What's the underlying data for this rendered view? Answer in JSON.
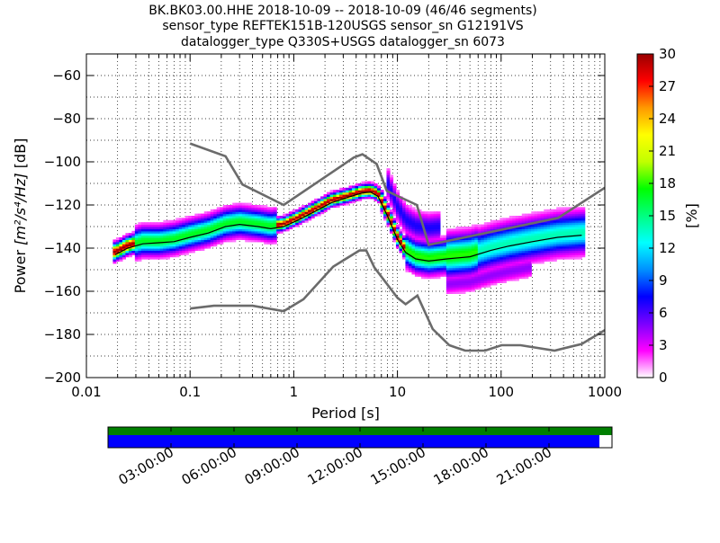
{
  "title_lines": [
    "BK.BK03.00.HHE   2018-10-09 -- 2018-10-09  (46/46 segments)",
    "sensor_type REFTEK151B-120USGS sensor_sn G12191VS",
    "datalogger_type Q330S+USGS datalogger_sn 6073"
  ],
  "chart_data": {
    "type": "heatmap",
    "xlabel": "Period [s]",
    "ylabel_prefix": "Power ",
    "ylabel_unit": "[m²/s⁴/Hz]",
    "ylabel_suffix": " [dB]",
    "xscale": "log",
    "xlim": [
      0.01,
      1000
    ],
    "ylim": [
      -200,
      -50
    ],
    "x_ticks": [
      0.01,
      0.1,
      1,
      10,
      100,
      1000
    ],
    "x_tick_labels": [
      "0.01",
      "0.1",
      "1",
      "10",
      "100",
      "1000"
    ],
    "y_ticks": [
      -200,
      -180,
      -160,
      -140,
      -120,
      -100,
      -80,
      -60
    ],
    "y_tick_labels": [
      "−200",
      "−180",
      "−160",
      "−140",
      "−120",
      "−100",
      "−80",
      "−60"
    ],
    "grid": "dotted",
    "colorbar": {
      "label": "[%]",
      "range": [
        0,
        30
      ],
      "ticks": [
        0,
        3,
        6,
        9,
        12,
        15,
        18,
        21,
        24,
        27,
        30
      ],
      "colormap": [
        "#ffffff",
        "#ff00ff",
        "#7a00ff",
        "#0000ff",
        "#0090ff",
        "#00ffff",
        "#00ff80",
        "#00ff00",
        "#c0ff00",
        "#ffff00",
        "#ff9900",
        "#ff0000",
        "#990000"
      ]
    },
    "nhnm": [
      [
        0.1,
        -91.5
      ],
      [
        0.22,
        -97.4
      ],
      [
        0.32,
        -110.5
      ],
      [
        0.8,
        -120
      ],
      [
        3.8,
        -98
      ],
      [
        4.6,
        -96.5
      ],
      [
        6.3,
        -101
      ],
      [
        7.9,
        -113.5
      ],
      [
        15.4,
        -120
      ],
      [
        20,
        -138.5
      ],
      [
        354.8,
        -126
      ],
      [
        1000,
        -112
      ]
    ],
    "nlnm": [
      [
        0.1,
        -168
      ],
      [
        0.17,
        -166.7
      ],
      [
        0.4,
        -166.7
      ],
      [
        0.8,
        -169.2
      ],
      [
        1.24,
        -163.7
      ],
      [
        2.4,
        -148.6
      ],
      [
        4.3,
        -141.1
      ],
      [
        5,
        -141.1
      ],
      [
        6,
        -149
      ],
      [
        10,
        -163
      ],
      [
        12,
        -166
      ],
      [
        15.6,
        -162
      ],
      [
        21.9,
        -177.5
      ],
      [
        31.6,
        -185
      ],
      [
        45,
        -187.5
      ],
      [
        70,
        -187.5
      ],
      [
        101,
        -185
      ],
      [
        154,
        -185
      ],
      [
        328,
        -187.5
      ],
      [
        600,
        -184.4
      ],
      [
        1000,
        -178
      ]
    ],
    "mode_curve": [
      [
        0.019,
        -142
      ],
      [
        0.025,
        -139
      ],
      [
        0.035,
        -137
      ],
      [
        0.05,
        -137
      ],
      [
        0.07,
        -136
      ],
      [
        0.1,
        -134
      ],
      [
        0.15,
        -132
      ],
      [
        0.22,
        -129
      ],
      [
        0.3,
        -128
      ],
      [
        0.45,
        -129
      ],
      [
        0.6,
        -130
      ],
      [
        0.8,
        -129
      ],
      [
        1.1,
        -126
      ],
      [
        1.6,
        -122
      ],
      [
        2.3,
        -118
      ],
      [
        3.3,
        -116
      ],
      [
        4.5,
        -114
      ],
      [
        5.5,
        -113.5
      ],
      [
        6.5,
        -115
      ],
      [
        8,
        -124
      ],
      [
        10,
        -135
      ],
      [
        12,
        -141
      ],
      [
        15,
        -144
      ],
      [
        20,
        -145
      ],
      [
        30,
        -144
      ],
      [
        50,
        -143
      ],
      [
        80,
        -140
      ],
      [
        120,
        -138
      ],
      [
        200,
        -136
      ],
      [
        350,
        -134
      ],
      [
        600,
        -133
      ]
    ],
    "mean_curve": [
      [
        0.019,
        -143
      ],
      [
        0.025,
        -140
      ],
      [
        0.035,
        -138
      ],
      [
        0.05,
        -137.5
      ],
      [
        0.07,
        -137
      ],
      [
        0.1,
        -135
      ],
      [
        0.15,
        -133
      ],
      [
        0.22,
        -130
      ],
      [
        0.3,
        -129
      ],
      [
        0.45,
        -130
      ],
      [
        0.6,
        -131
      ],
      [
        0.8,
        -130
      ],
      [
        1.1,
        -127
      ],
      [
        1.6,
        -123
      ],
      [
        2.3,
        -119
      ],
      [
        3.3,
        -116.5
      ],
      [
        4.5,
        -114.5
      ],
      [
        5.5,
        -114
      ],
      [
        6.5,
        -116
      ],
      [
        8,
        -125
      ],
      [
        10,
        -136
      ],
      [
        12,
        -142
      ],
      [
        15,
        -145
      ],
      [
        20,
        -146
      ],
      [
        30,
        -145
      ],
      [
        50,
        -144
      ],
      [
        80,
        -141
      ],
      [
        120,
        -139
      ],
      [
        200,
        -137
      ],
      [
        350,
        -135
      ],
      [
        600,
        -134
      ]
    ],
    "time_axis": {
      "tick_labels": [
        "03:00:00",
        "06:00:00",
        "09:00:00",
        "12:00:00",
        "15:00:00",
        "18:00:00",
        "21:00:00"
      ],
      "data_fraction": 0.975,
      "colors": {
        "coverage": "#008000",
        "data": "#0000ff"
      }
    }
  }
}
